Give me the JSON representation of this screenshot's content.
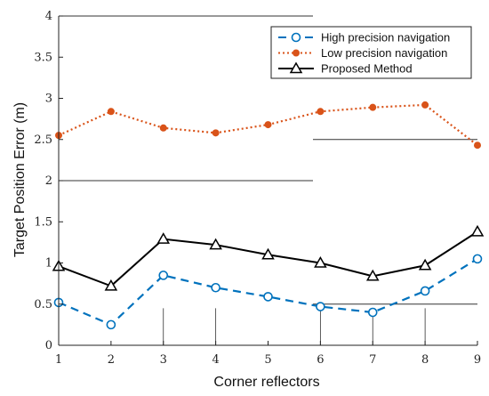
{
  "chart_data": {
    "type": "line",
    "title": "",
    "xlabel": "Corner reflectors",
    "ylabel": "Target Position Error (m)",
    "x": [
      1,
      2,
      3,
      4,
      5,
      6,
      7,
      8,
      9
    ],
    "xlim": [
      1,
      9
    ],
    "ylim": [
      0,
      4
    ],
    "xticks": [
      "1",
      "2",
      "3",
      "4",
      "5",
      "6",
      "7",
      "8",
      "9"
    ],
    "yticks": [
      "0",
      "0.5",
      "1",
      "1.5",
      "2",
      "2.5",
      "3",
      "3.5",
      "4"
    ],
    "grid": false,
    "legend_position": "top-right",
    "series": [
      {
        "name": "High precision navigation",
        "color": "#0072BD",
        "style": "dashed",
        "marker": "circle",
        "values": [
          0.52,
          0.25,
          0.85,
          0.7,
          0.59,
          0.47,
          0.4,
          0.66,
          1.05
        ]
      },
      {
        "name": "Low precision navigation",
        "color": "#D95319",
        "style": "dotted",
        "marker": "dot",
        "values": [
          2.55,
          2.84,
          2.64,
          2.58,
          2.68,
          2.84,
          2.89,
          2.92,
          2.43
        ]
      },
      {
        "name": "Proposed Method",
        "color": "#000000",
        "style": "solid",
        "marker": "triangle",
        "values": [
          0.96,
          0.72,
          1.29,
          1.22,
          1.1,
          1.0,
          0.84,
          0.97,
          1.38
        ]
      }
    ]
  }
}
